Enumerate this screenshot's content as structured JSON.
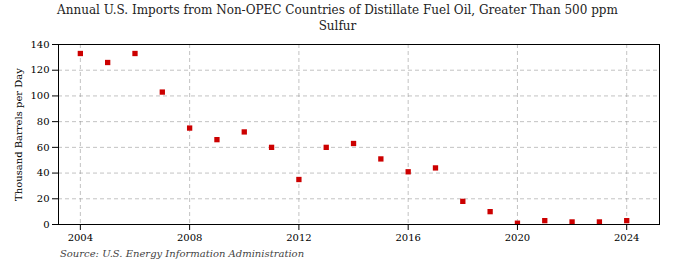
{
  "chart_data": {
    "type": "scatter",
    "title": "Annual U.S. Imports from Non-OPEC Countries of Distillate Fuel Oil, Greater Than 500 ppm\nSulfur",
    "ylabel": "Thousand Barrels per Day",
    "source": "Source: U.S. Energy Information Administration",
    "x": [
      2004,
      2005,
      2006,
      2007,
      2008,
      2009,
      2010,
      2011,
      2012,
      2013,
      2014,
      2015,
      2016,
      2017,
      2018,
      2019,
      2020,
      2021,
      2022,
      2023,
      2024
    ],
    "values": [
      133,
      126,
      133,
      103,
      75,
      66,
      72,
      60,
      35,
      60,
      63,
      51,
      41,
      44,
      18,
      10,
      1,
      3,
      2,
      2,
      3
    ],
    "color": "#cc0000",
    "marker": "square",
    "xlim": [
      2003.2,
      2025.2
    ],
    "xticks": [
      2004,
      2008,
      2012,
      2016,
      2020,
      2024
    ],
    "ylim": [
      0,
      140
    ],
    "yticks": [
      0,
      20,
      40,
      60,
      80,
      100,
      120,
      140
    ],
    "grid": true
  }
}
